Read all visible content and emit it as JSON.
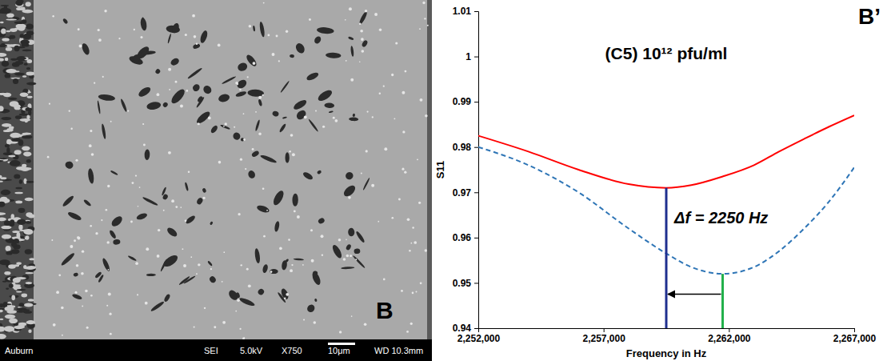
{
  "chart_data": {
    "type": "line",
    "title": "(C5) 10¹² pfu/ml",
    "panel_label": "B’",
    "x_label": "Frequency in Hz",
    "y_label": "S11",
    "annotation": "Δf = 2250 Hz",
    "x": [
      2252000,
      2254000,
      2256000,
      2258000,
      2259500,
      2260500,
      2261750,
      2263000,
      2264000,
      2265000,
      2266000,
      2267000
    ],
    "series": [
      {
        "color": "#ff0000",
        "line_style": "solid",
        "values": [
          0.9825,
          0.979,
          0.975,
          0.9718,
          0.971,
          0.9716,
          0.9735,
          0.976,
          0.979,
          0.9818,
          0.9845,
          0.987
        ]
      },
      {
        "color": "#2e75b6",
        "line_style": "dashed",
        "values": [
          0.98,
          0.976,
          0.97,
          0.962,
          0.9565,
          0.9535,
          0.952,
          0.9535,
          0.957,
          0.962,
          0.968,
          0.9755
        ]
      }
    ],
    "vlines": [
      {
        "x": 2259500,
        "y": 0.971,
        "color": "#1f2f8f"
      },
      {
        "x": 2261750,
        "y": 0.952,
        "color": "#22b04b"
      }
    ],
    "arrow": {
      "from": 2261750,
      "to": 2259500,
      "y": 0.9475
    },
    "xlim": [
      2252000,
      2267000
    ],
    "xticks": [
      {
        "value": 2252000,
        "label": "2,252,000"
      },
      {
        "value": 2257000,
        "label": "2,257,000"
      },
      {
        "value": 2262000,
        "label": "2,262,000"
      },
      {
        "value": 2267000,
        "label": "2,267,000"
      }
    ],
    "ylim": [
      0.94,
      1.01
    ],
    "yticks": [
      0.94,
      0.95,
      0.96,
      0.97,
      0.98,
      0.99,
      1,
      1.01
    ],
    "grid": false
  },
  "micrograph": {
    "label": "B",
    "info_bar": [
      "Auburn",
      "SEI",
      "5.0kV",
      "X750",
      "10μm",
      "WD 10.3mm"
    ]
  }
}
